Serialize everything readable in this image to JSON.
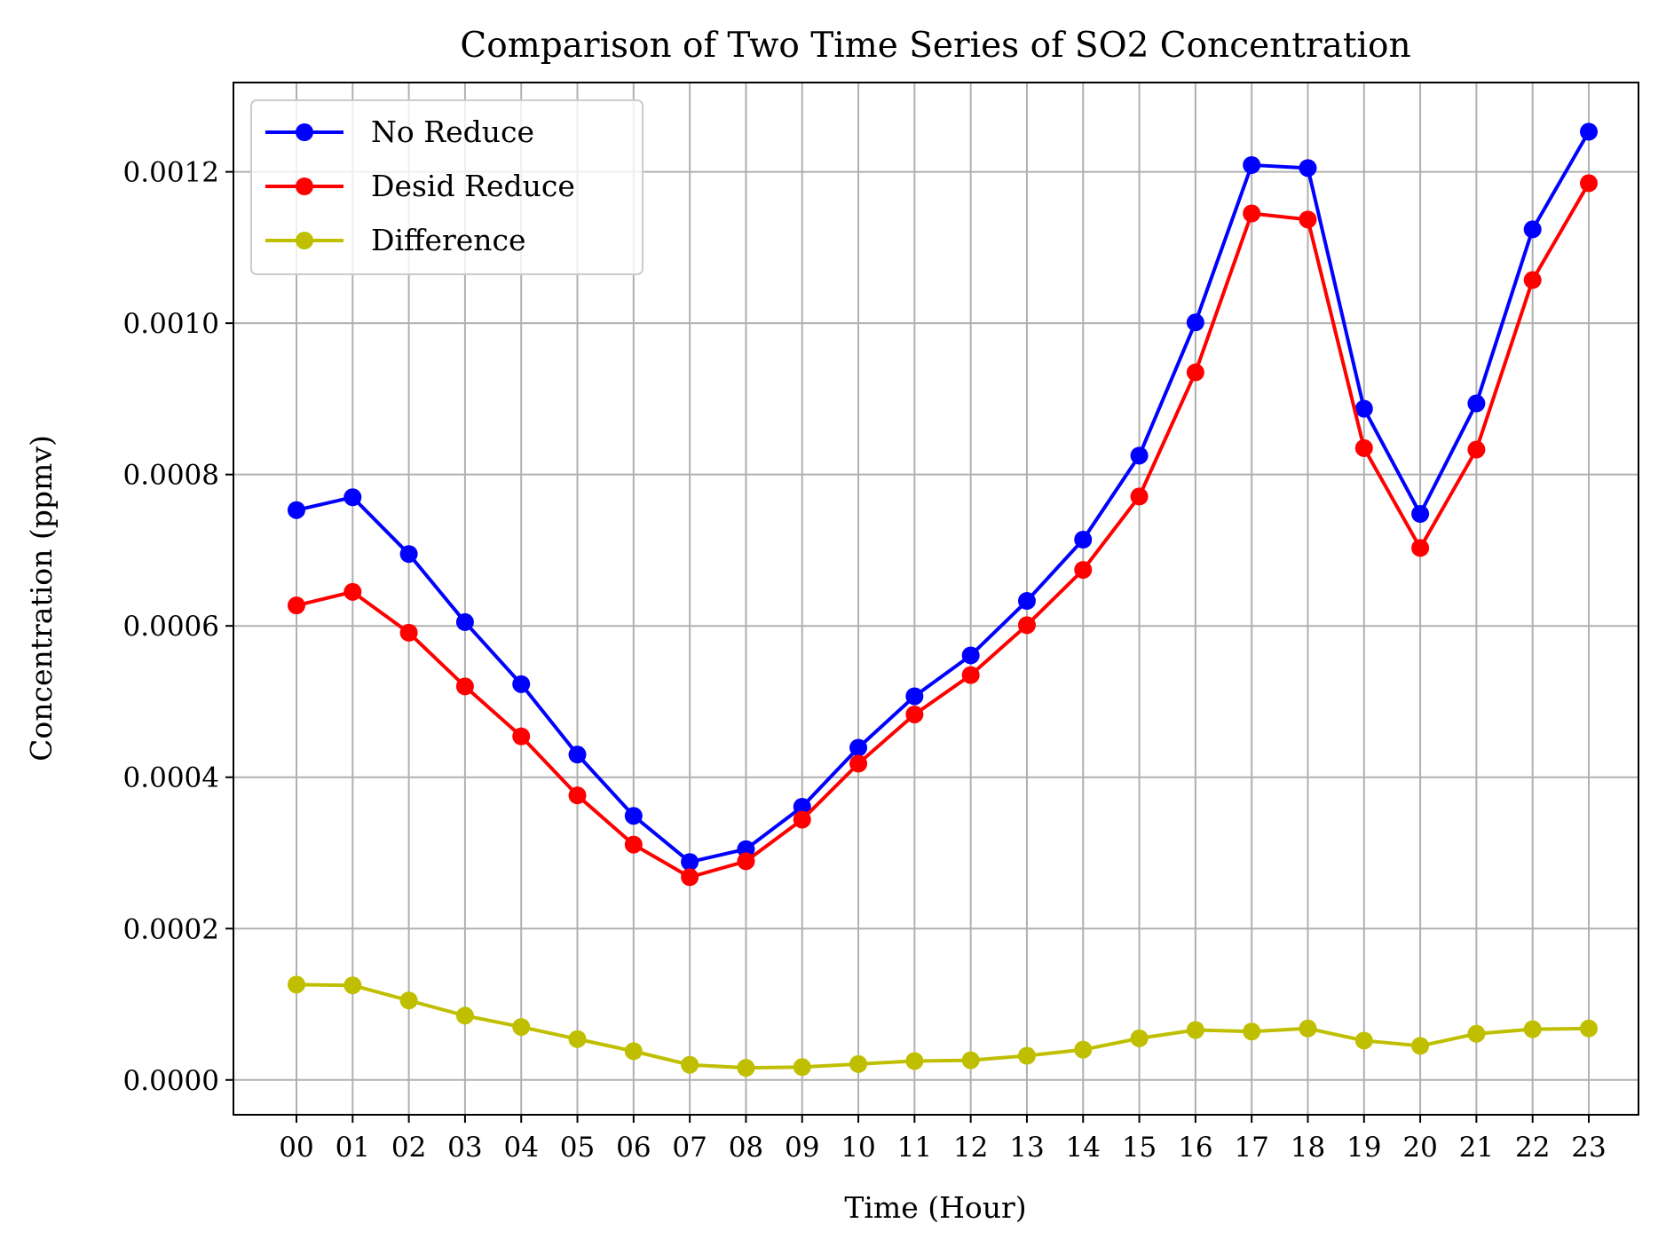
{
  "chart_data": {
    "type": "line",
    "title": "Comparison of Two Time Series of SO2 Concentration",
    "xlabel": "Time (Hour)",
    "ylabel": "Concentration (ppmv)",
    "categories": [
      "00",
      "01",
      "02",
      "03",
      "04",
      "05",
      "06",
      "07",
      "08",
      "09",
      "10",
      "11",
      "12",
      "13",
      "14",
      "15",
      "16",
      "17",
      "18",
      "19",
      "20",
      "21",
      "22",
      "23"
    ],
    "yticks": [
      0.0,
      0.0002,
      0.0004,
      0.0006,
      0.0008,
      0.001,
      0.0012
    ],
    "ytick_labels": [
      "0.0000",
      "0.0002",
      "0.0004",
      "0.0006",
      "0.0008",
      "0.0010",
      "0.0012"
    ],
    "ylim": [
      -4.6e-05,
      0.001318
    ],
    "grid": true,
    "legend_position": "top-left",
    "series": [
      {
        "name": "No Reduce",
        "color": "#0000ff",
        "values": [
          0.000753,
          0.00077,
          0.000695,
          0.000605,
          0.000523,
          0.00043,
          0.000349,
          0.000288,
          0.000305,
          0.000361,
          0.000439,
          0.000507,
          0.000561,
          0.000633,
          0.000714,
          0.000825,
          0.001001,
          0.001209,
          0.001205,
          0.000887,
          0.000748,
          0.000894,
          0.001124,
          0.001253
        ]
      },
      {
        "name": "Desid Reduce",
        "color": "#ff0000",
        "values": [
          0.000627,
          0.000645,
          0.000591,
          0.00052,
          0.000454,
          0.000376,
          0.000311,
          0.000268,
          0.000289,
          0.000344,
          0.000418,
          0.000483,
          0.000535,
          0.000601,
          0.000674,
          0.000771,
          0.000935,
          0.001145,
          0.001137,
          0.000835,
          0.000703,
          0.000833,
          0.001057,
          0.001185
        ]
      },
      {
        "name": "Difference",
        "color": "#bfbf00",
        "values": [
          0.000126,
          0.000125,
          0.000105,
          8.5e-05,
          7e-05,
          5.4e-05,
          3.8e-05,
          2e-05,
          1.6e-05,
          1.7e-05,
          2.1e-05,
          2.5e-05,
          2.6e-05,
          3.2e-05,
          4e-05,
          5.5e-05,
          6.6e-05,
          6.4e-05,
          6.8e-05,
          5.2e-05,
          4.5e-05,
          6.1e-05,
          6.7e-05,
          6.8e-05
        ]
      }
    ]
  }
}
